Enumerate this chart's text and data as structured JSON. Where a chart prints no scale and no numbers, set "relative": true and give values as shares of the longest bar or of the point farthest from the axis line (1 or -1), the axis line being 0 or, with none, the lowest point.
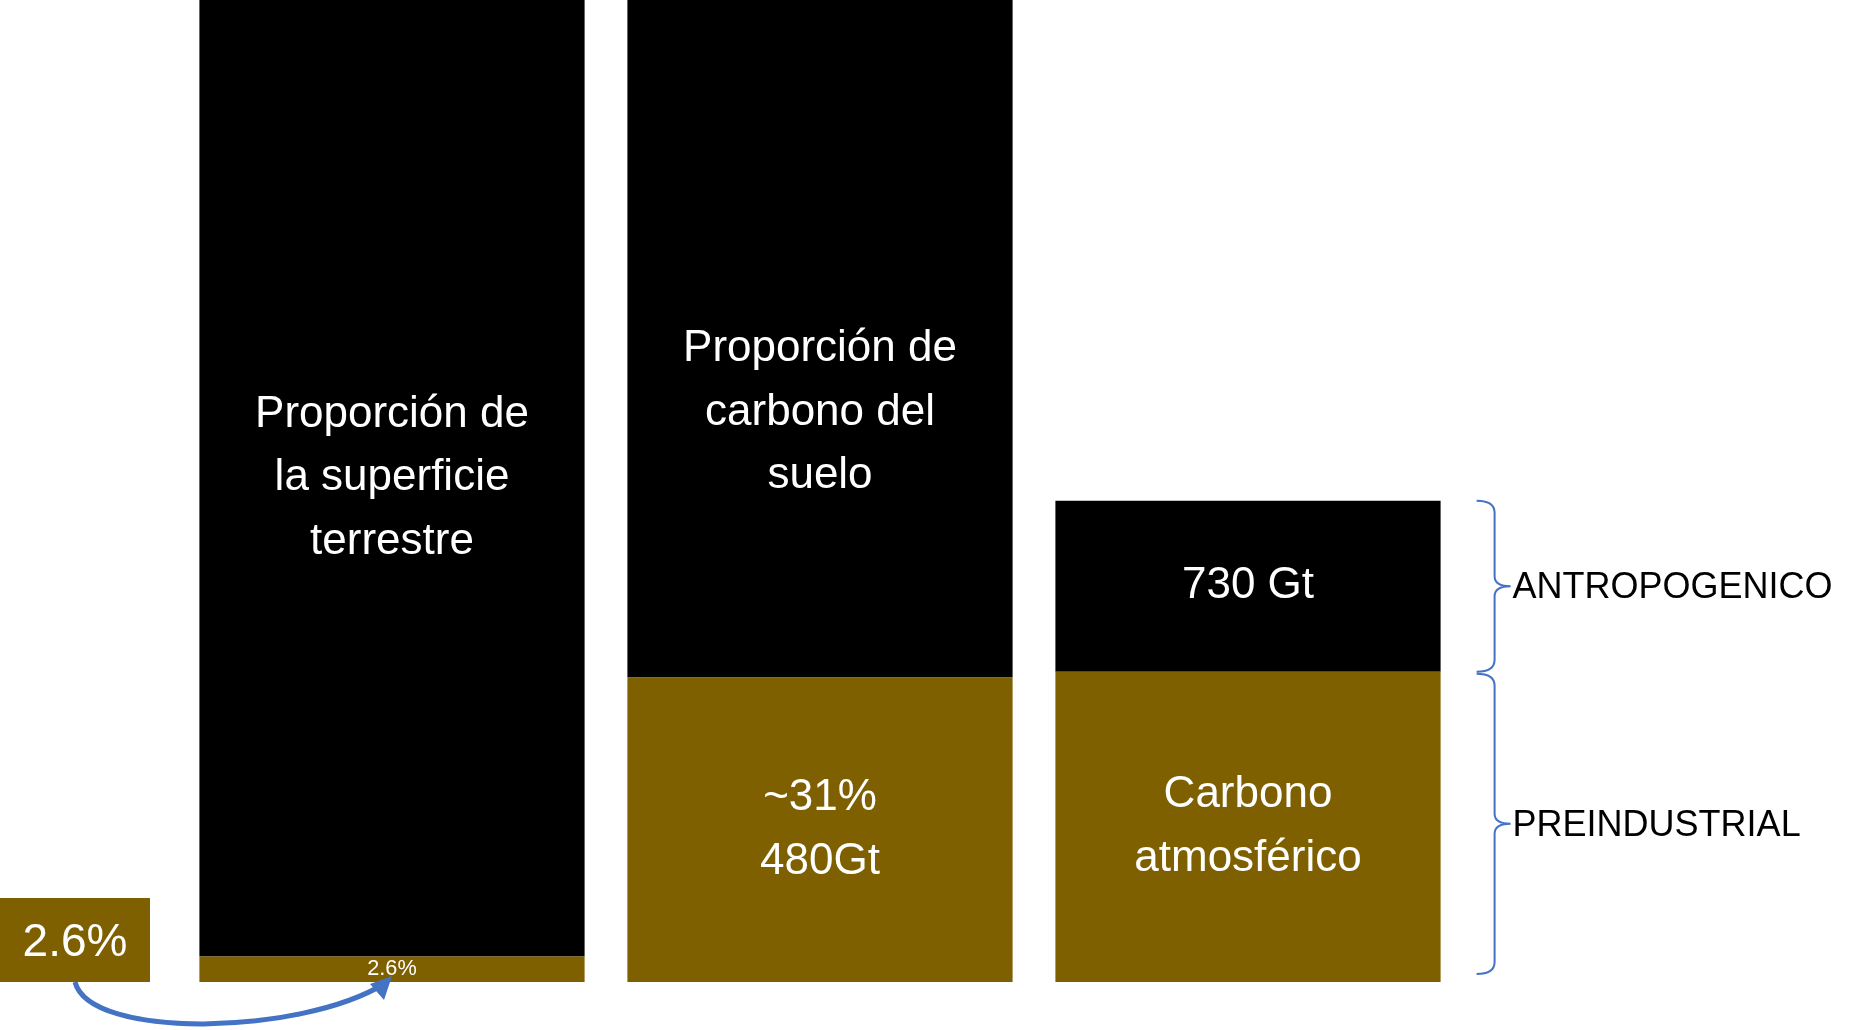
{
  "chart_data": {
    "type": "bar",
    "stacked": true,
    "relative": true,
    "categories": [
      null,
      null,
      null
    ],
    "series": [
      {
        "color": "#7f6000",
        "values": [
          0.026,
          0.31,
          0.316
        ]
      },
      {
        "color": "#000000",
        "values": [
          0.974,
          0.69,
          0.174
        ]
      }
    ],
    "legend": false,
    "tick_labels": false,
    "annotations": [
      "2.6%",
      "Proporción de la superficie terrestre",
      "~31%\n480Gt",
      "Proporción de carbono del suelo",
      "Carbono atmosférico",
      "730 Gt",
      "2.6%",
      "ANTROPOGENICO",
      "PREINDUSTRIAL"
    ]
  }
}
